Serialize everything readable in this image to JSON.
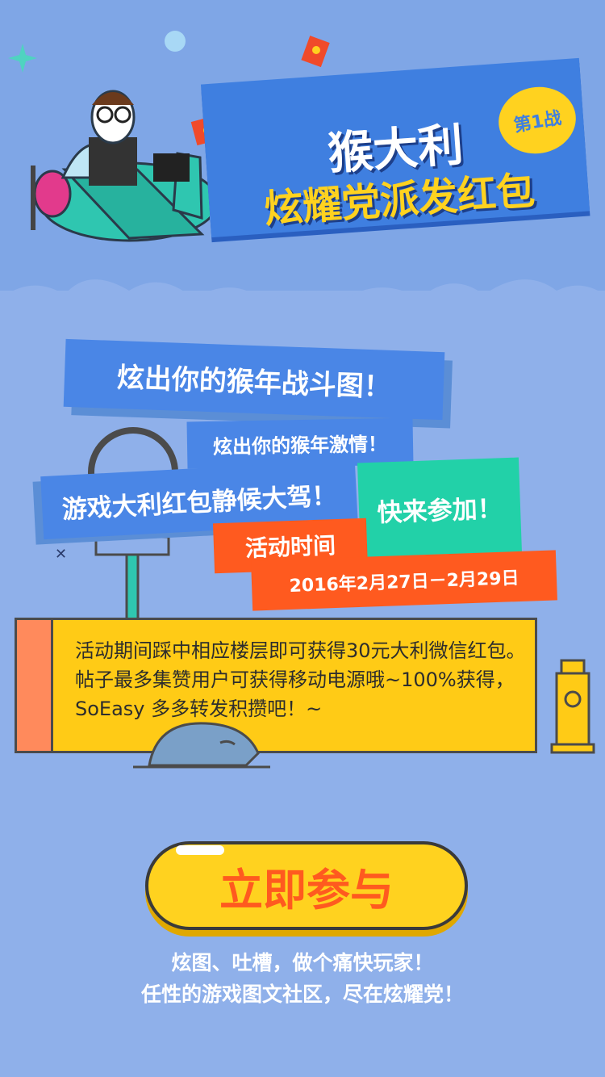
{
  "header": {
    "title_line1": "猴大利",
    "title_line2": "炫耀党派发红包",
    "badge": "第1战"
  },
  "tags": {
    "headline": "炫出你的猴年战斗图！",
    "sub": "炫出你的猴年激情！",
    "game": "游戏大利红包静候大驾！",
    "join": "快来参加！",
    "time_label": "活动时间",
    "time_range": "2016年2月27日－2月29日"
  },
  "info": {
    "text": "活动期间踩中相应楼层即可获得30元大利微信红包。帖子最多集赞用户可获得移动电源哦~100%获得，SoEasy 多多转发积攒吧！~"
  },
  "cta": {
    "label": "立即参与"
  },
  "slogans": {
    "line1": "炫图、吐槽，做个痛快玩家！",
    "line2": "任性的游戏图文社区，尽在炫耀党！"
  },
  "colors": {
    "background": "#8fb0ea",
    "banner_blue": "#3f7fe0",
    "yellow": "#ffd21f",
    "orange": "#ff5a1f",
    "teal": "#22d1a8"
  }
}
